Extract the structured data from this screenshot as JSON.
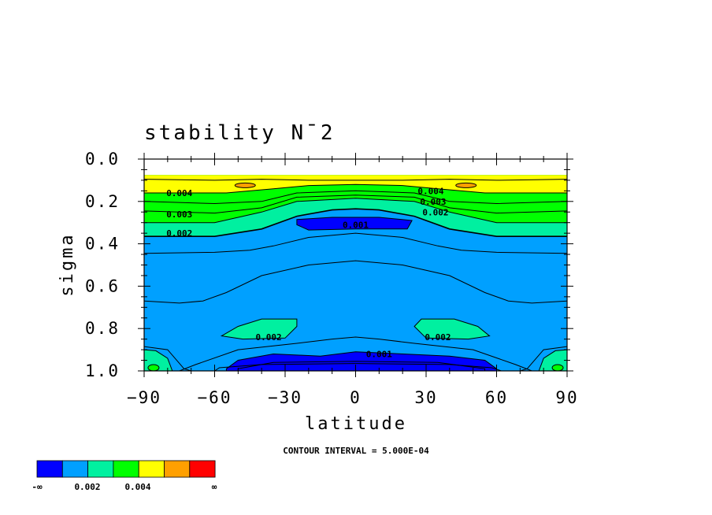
{
  "chart_data": {
    "type": "contour",
    "title": "stability N¯2",
    "xlabel": "latitude",
    "ylabel": "sigma",
    "xlim": [
      -90,
      90
    ],
    "ylim": [
      1.0,
      0.0
    ],
    "x_ticks": [
      "−90",
      "−60",
      "−30",
      "0",
      "30",
      "60",
      "90"
    ],
    "y_ticks": [
      "0.0",
      "0.2",
      "0.4",
      "0.6",
      "0.8",
      "1.0"
    ],
    "contour_interval_text": "CONTOUR INTERVAL = 5.000E-04",
    "contour_labels": [
      {
        "text": "0.004",
        "lat": -75,
        "sigma": 0.16
      },
      {
        "text": "0.003",
        "lat": -75,
        "sigma": 0.26
      },
      {
        "text": "0.002",
        "lat": -75,
        "sigma": 0.35
      },
      {
        "text": "0.004",
        "lat": 32,
        "sigma": 0.15
      },
      {
        "text": "0.003",
        "lat": 33,
        "sigma": 0.2
      },
      {
        "text": "0.002",
        "lat": 34,
        "sigma": 0.25
      },
      {
        "text": "0.001",
        "lat": 0,
        "sigma": 0.31
      },
      {
        "text": "0.002",
        "lat": -37,
        "sigma": 0.84
      },
      {
        "text": "0.002",
        "lat": 35,
        "sigma": 0.84
      },
      {
        "text": "0.001",
        "lat": 10,
        "sigma": 0.92
      }
    ],
    "colorbar": {
      "colors": [
        "#0000ff",
        "#00a0ff",
        "#00f0a0",
        "#00ff00",
        "#ffff00",
        "#ffa000",
        "#ff0000"
      ],
      "labels": [
        "-∞",
        "0.002",
        "0.004",
        "∞"
      ]
    },
    "fill_colors": {
      "low": "#0000ff",
      "base": "#00a0ff",
      "mid": "#00f0a0",
      "green": "#00ff00",
      "top": "#ffff00",
      "max": "#ffa000"
    }
  }
}
